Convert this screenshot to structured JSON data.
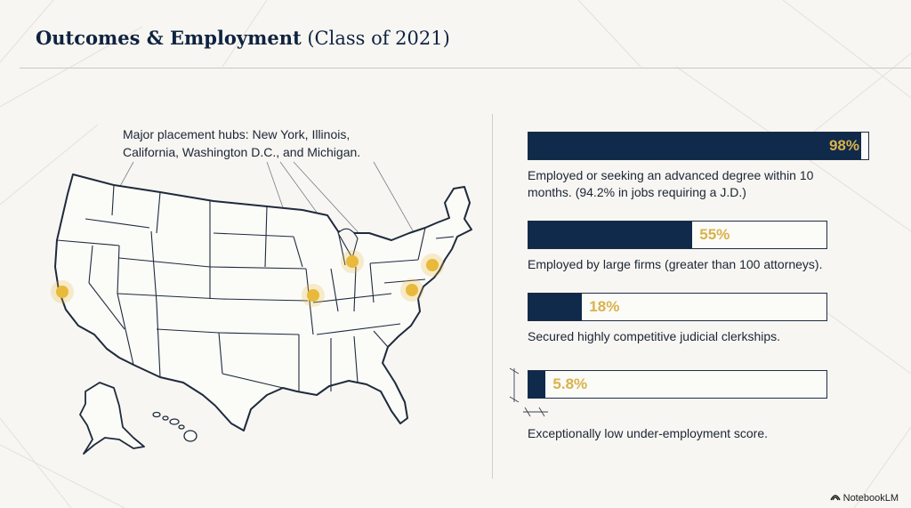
{
  "header": {
    "title_bold": "Outcomes & Employment",
    "title_rest": " (Class of 2021)"
  },
  "map": {
    "caption": "Major placement hubs: New York, Illinois, California, Washington D.C., and Michigan.",
    "hub_color": "#e8b93a"
  },
  "stats": [
    {
      "value_label": "98%",
      "value": 0.98,
      "description": "Employed or seeking an advanced degree within 10 months. (94.2% in jobs requiring a J.D.)"
    },
    {
      "value_label": "55%",
      "value": 0.55,
      "description": "Employed by large firms (greater than 100 attorneys)."
    },
    {
      "value_label": "18%",
      "value": 0.18,
      "description": "Secured highly competitive judicial clerkships."
    },
    {
      "value_label": "5.8%",
      "value": 0.058,
      "description": "Exceptionally low under-employment score."
    }
  ],
  "brand": {
    "icon": "notebooklm-icon",
    "label": "NotebookLM"
  },
  "colors": {
    "navy": "#0f2a4a",
    "gold": "#d9b24a",
    "background": "#f7f6f2"
  }
}
